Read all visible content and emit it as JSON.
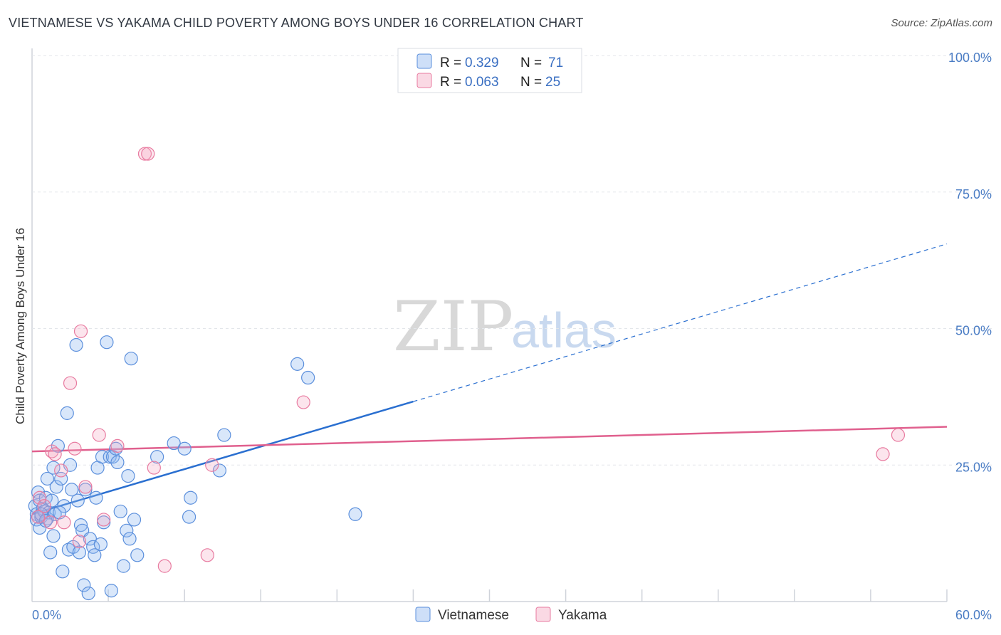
{
  "title": "VIETNAMESE VS YAKAMA CHILD POVERTY AMONG BOYS UNDER 16 CORRELATION CHART",
  "source": "Source: ZipAtlas.com",
  "watermark": {
    "zip": "ZIP",
    "atlas": "atlas"
  },
  "colors": {
    "blue": "#5b8fdc",
    "blue_fill": "rgba(147,185,240,0.35)",
    "blue_line": "#2a6fd0",
    "pink": "#e87ba0",
    "pink_fill": "rgba(245,170,195,0.30)",
    "pink_line": "#e0608e",
    "tick_color": "#4a7cc4"
  },
  "legend": {
    "rows": [
      {
        "r_label": "R =",
        "r_value": "0.329",
        "n_label": "N =",
        "n_value": "71"
      },
      {
        "r_label": "R =",
        "r_value": "0.063",
        "n_label": "N =",
        "n_value": "25"
      }
    ],
    "bottom": [
      "Vietnamese",
      "Yakama"
    ]
  },
  "chart_data": {
    "type": "scatter",
    "title": "VIETNAMESE VS YAKAMA CHILD POVERTY AMONG BOYS UNDER 16 CORRELATION CHART",
    "xlabel": "",
    "ylabel": "Child Poverty Among Boys Under 16",
    "xlim": [
      0,
      60
    ],
    "ylim": [
      0,
      100
    ],
    "x_tick_labels": [
      "0.0%",
      "60.0%"
    ],
    "y_ticks": [
      25,
      50,
      75,
      100
    ],
    "y_tick_labels": [
      "25.0%",
      "50.0%",
      "75.0%",
      "100.0%"
    ],
    "series": [
      {
        "name": "Vietnamese",
        "r": 0.329,
        "n": 71,
        "trend": {
          "x0": 0,
          "y0": 16.0,
          "x1": 60,
          "y1": 65.5,
          "solid_until_x": 25
        },
        "points": [
          [
            0.2,
            17.5
          ],
          [
            0.3,
            16.0
          ],
          [
            0.3,
            15.0
          ],
          [
            0.4,
            20.0
          ],
          [
            0.5,
            13.5
          ],
          [
            0.5,
            18.5
          ],
          [
            0.6,
            15.5
          ],
          [
            0.7,
            17.0
          ],
          [
            0.8,
            16.5
          ],
          [
            0.9,
            19.0
          ],
          [
            1.0,
            15.2
          ],
          [
            1.0,
            22.5
          ],
          [
            1.1,
            16.3
          ],
          [
            1.2,
            9.0
          ],
          [
            1.3,
            18.5
          ],
          [
            1.4,
            12.0
          ],
          [
            1.4,
            24.5
          ],
          [
            1.5,
            16.0
          ],
          [
            1.6,
            21.0
          ],
          [
            1.7,
            28.5
          ],
          [
            1.9,
            22.5
          ],
          [
            2.0,
            5.5
          ],
          [
            2.1,
            17.5
          ],
          [
            2.3,
            34.5
          ],
          [
            2.4,
            9.5
          ],
          [
            2.5,
            25.0
          ],
          [
            2.6,
            20.5
          ],
          [
            2.7,
            10.0
          ],
          [
            2.9,
            47.0
          ],
          [
            3.0,
            18.5
          ],
          [
            3.1,
            9.0
          ],
          [
            3.2,
            14.0
          ],
          [
            3.3,
            13.0
          ],
          [
            3.4,
            3.0
          ],
          [
            3.5,
            20.5
          ],
          [
            3.7,
            1.5
          ],
          [
            3.8,
            11.5
          ],
          [
            4.0,
            10.0
          ],
          [
            4.1,
            8.5
          ],
          [
            4.2,
            19.0
          ],
          [
            4.3,
            24.5
          ],
          [
            4.5,
            10.5
          ],
          [
            4.6,
            26.5
          ],
          [
            4.7,
            14.5
          ],
          [
            4.9,
            47.5
          ],
          [
            5.1,
            26.5
          ],
          [
            5.2,
            2.0
          ],
          [
            5.3,
            26.5
          ],
          [
            5.5,
            28.0
          ],
          [
            5.6,
            25.5
          ],
          [
            5.8,
            16.5
          ],
          [
            6.0,
            6.5
          ],
          [
            6.2,
            13.0
          ],
          [
            6.3,
            23.0
          ],
          [
            6.4,
            11.5
          ],
          [
            6.5,
            44.5
          ],
          [
            6.7,
            15.0
          ],
          [
            6.9,
            8.5
          ],
          [
            8.2,
            26.5
          ],
          [
            9.3,
            29.0
          ],
          [
            10.0,
            28.0
          ],
          [
            10.3,
            15.5
          ],
          [
            10.4,
            19.0
          ],
          [
            12.3,
            24.0
          ],
          [
            12.6,
            30.5
          ],
          [
            17.4,
            43.5
          ],
          [
            18.1,
            41.0
          ],
          [
            21.2,
            16.0
          ],
          [
            0.6,
            16.0
          ],
          [
            1.8,
            16.3
          ],
          [
            0.9,
            14.8
          ]
        ]
      },
      {
        "name": "Yakama",
        "r": 0.063,
        "n": 25,
        "trend": {
          "x0": 0,
          "y0": 27.5,
          "x1": 60,
          "y1": 32.0
        },
        "points": [
          [
            0.4,
            15.5
          ],
          [
            0.5,
            19.0
          ],
          [
            0.8,
            17.5
          ],
          [
            1.2,
            14.5
          ],
          [
            1.3,
            27.5
          ],
          [
            1.5,
            27.0
          ],
          [
            1.9,
            24.0
          ],
          [
            2.1,
            14.5
          ],
          [
            2.5,
            40.0
          ],
          [
            2.8,
            28.0
          ],
          [
            3.1,
            11.0
          ],
          [
            3.2,
            49.5
          ],
          [
            3.5,
            21.0
          ],
          [
            4.4,
            30.5
          ],
          [
            4.7,
            15.0
          ],
          [
            5.6,
            28.5
          ],
          [
            7.4,
            82.0
          ],
          [
            7.6,
            82.0
          ],
          [
            8.0,
            24.5
          ],
          [
            8.7,
            6.5
          ],
          [
            11.5,
            8.5
          ],
          [
            11.8,
            25.0
          ],
          [
            17.8,
            36.5
          ],
          [
            55.8,
            27.0
          ],
          [
            56.8,
            30.5
          ]
        ]
      }
    ]
  }
}
